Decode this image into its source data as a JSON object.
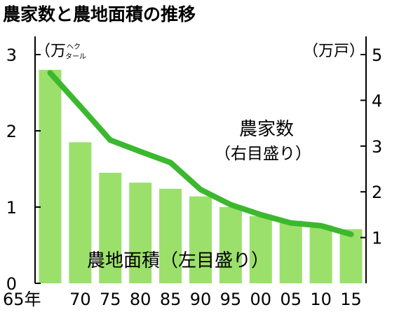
{
  "chart_data": {
    "type": "bar+line",
    "title": "農家数と農地面積の推移",
    "categories": [
      "65年",
      "70",
      "75",
      "80",
      "85",
      "90",
      "95",
      "00",
      "05",
      "10",
      "15"
    ],
    "series": [
      {
        "name": "農地面積（左目盛り）",
        "type": "bar",
        "axis": "left",
        "color": "#9be06b",
        "values": [
          2.8,
          1.85,
          1.45,
          1.32,
          1.24,
          1.14,
          1.0,
          0.88,
          0.82,
          0.76,
          0.71
        ]
      },
      {
        "name": "農家数（右目盛り）",
        "type": "line",
        "axis": "right",
        "color": "#3cb82f",
        "values": [
          4.6,
          3.87,
          3.13,
          2.88,
          2.64,
          2.05,
          1.72,
          1.5,
          1.32,
          1.26,
          1.07
        ]
      }
    ],
    "left_axis": {
      "unit_main": "（万",
      "unit_small": [
        "ヘク",
        "タール"
      ],
      "ticks": [
        "0",
        "1",
        "2",
        "3"
      ],
      "ylim": [
        0,
        3
      ]
    },
    "right_axis": {
      "unit": "（万戸）",
      "ticks": [
        "1",
        "2",
        "3",
        "4",
        "5"
      ],
      "ylim": [
        0,
        5
      ]
    },
    "annotations": {
      "line_label": "農家数",
      "line_sub": "（右目盛り）",
      "bar_label": "農地面積（左目盛り）"
    },
    "grid": false,
    "legend": "inline labels"
  },
  "colors": {
    "bar": "#9be06b",
    "line": "#3cb82f",
    "axis": "#000000"
  }
}
